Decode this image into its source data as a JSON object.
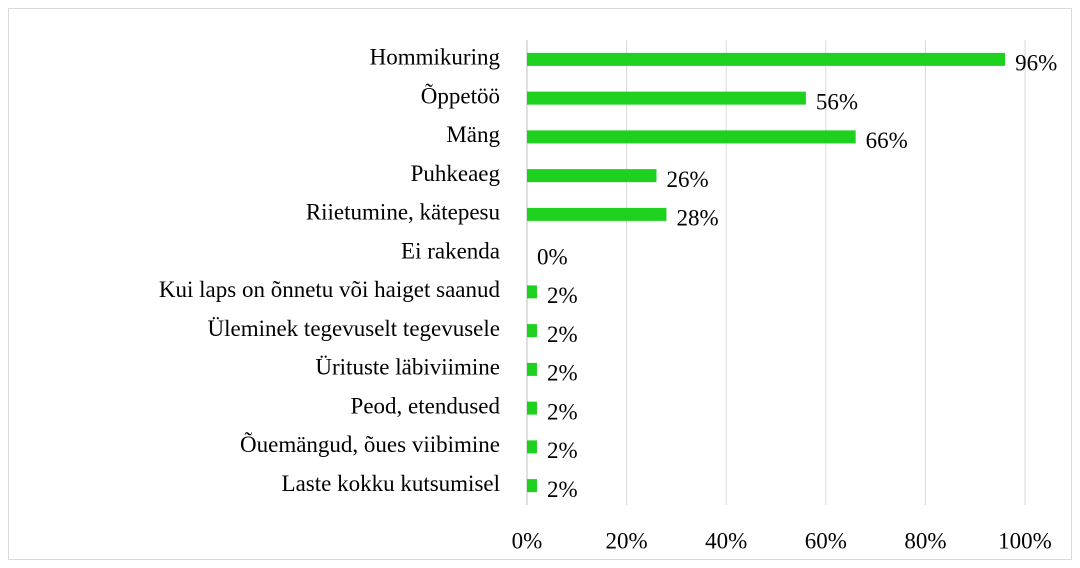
{
  "chart_data": {
    "type": "barh",
    "categories": [
      "Hommikuring",
      "Õppetöö",
      "Mäng",
      "Puhkeaeg",
      "Riietumine, kätepesu",
      "Ei rakenda",
      "Kui laps on õnnetu või haiget saanud",
      "Üleminek tegevuselt tegevusele",
      "Ürituste läbiviimine",
      "Peod, etendused",
      "Õuemängud, õues viibimine",
      "Laste kokku kutsumisel"
    ],
    "values": [
      96,
      56,
      66,
      26,
      28,
      0,
      2,
      2,
      2,
      2,
      2,
      2
    ],
    "value_labels": [
      "96%",
      "56%",
      "66%",
      "26%",
      "28%",
      "0%",
      "2%",
      "2%",
      "2%",
      "2%",
      "2%",
      "2%"
    ],
    "color": "#1fd11f",
    "xlim": [
      0,
      100
    ],
    "xticks": [
      {
        "value": 0,
        "label": "0%"
      },
      {
        "value": 20,
        "label": "20%"
      },
      {
        "value": 40,
        "label": "40%"
      },
      {
        "value": 60,
        "label": "60%"
      },
      {
        "value": 80,
        "label": "80%"
      },
      {
        "value": 100,
        "label": "100%"
      }
    ],
    "grid": true
  }
}
